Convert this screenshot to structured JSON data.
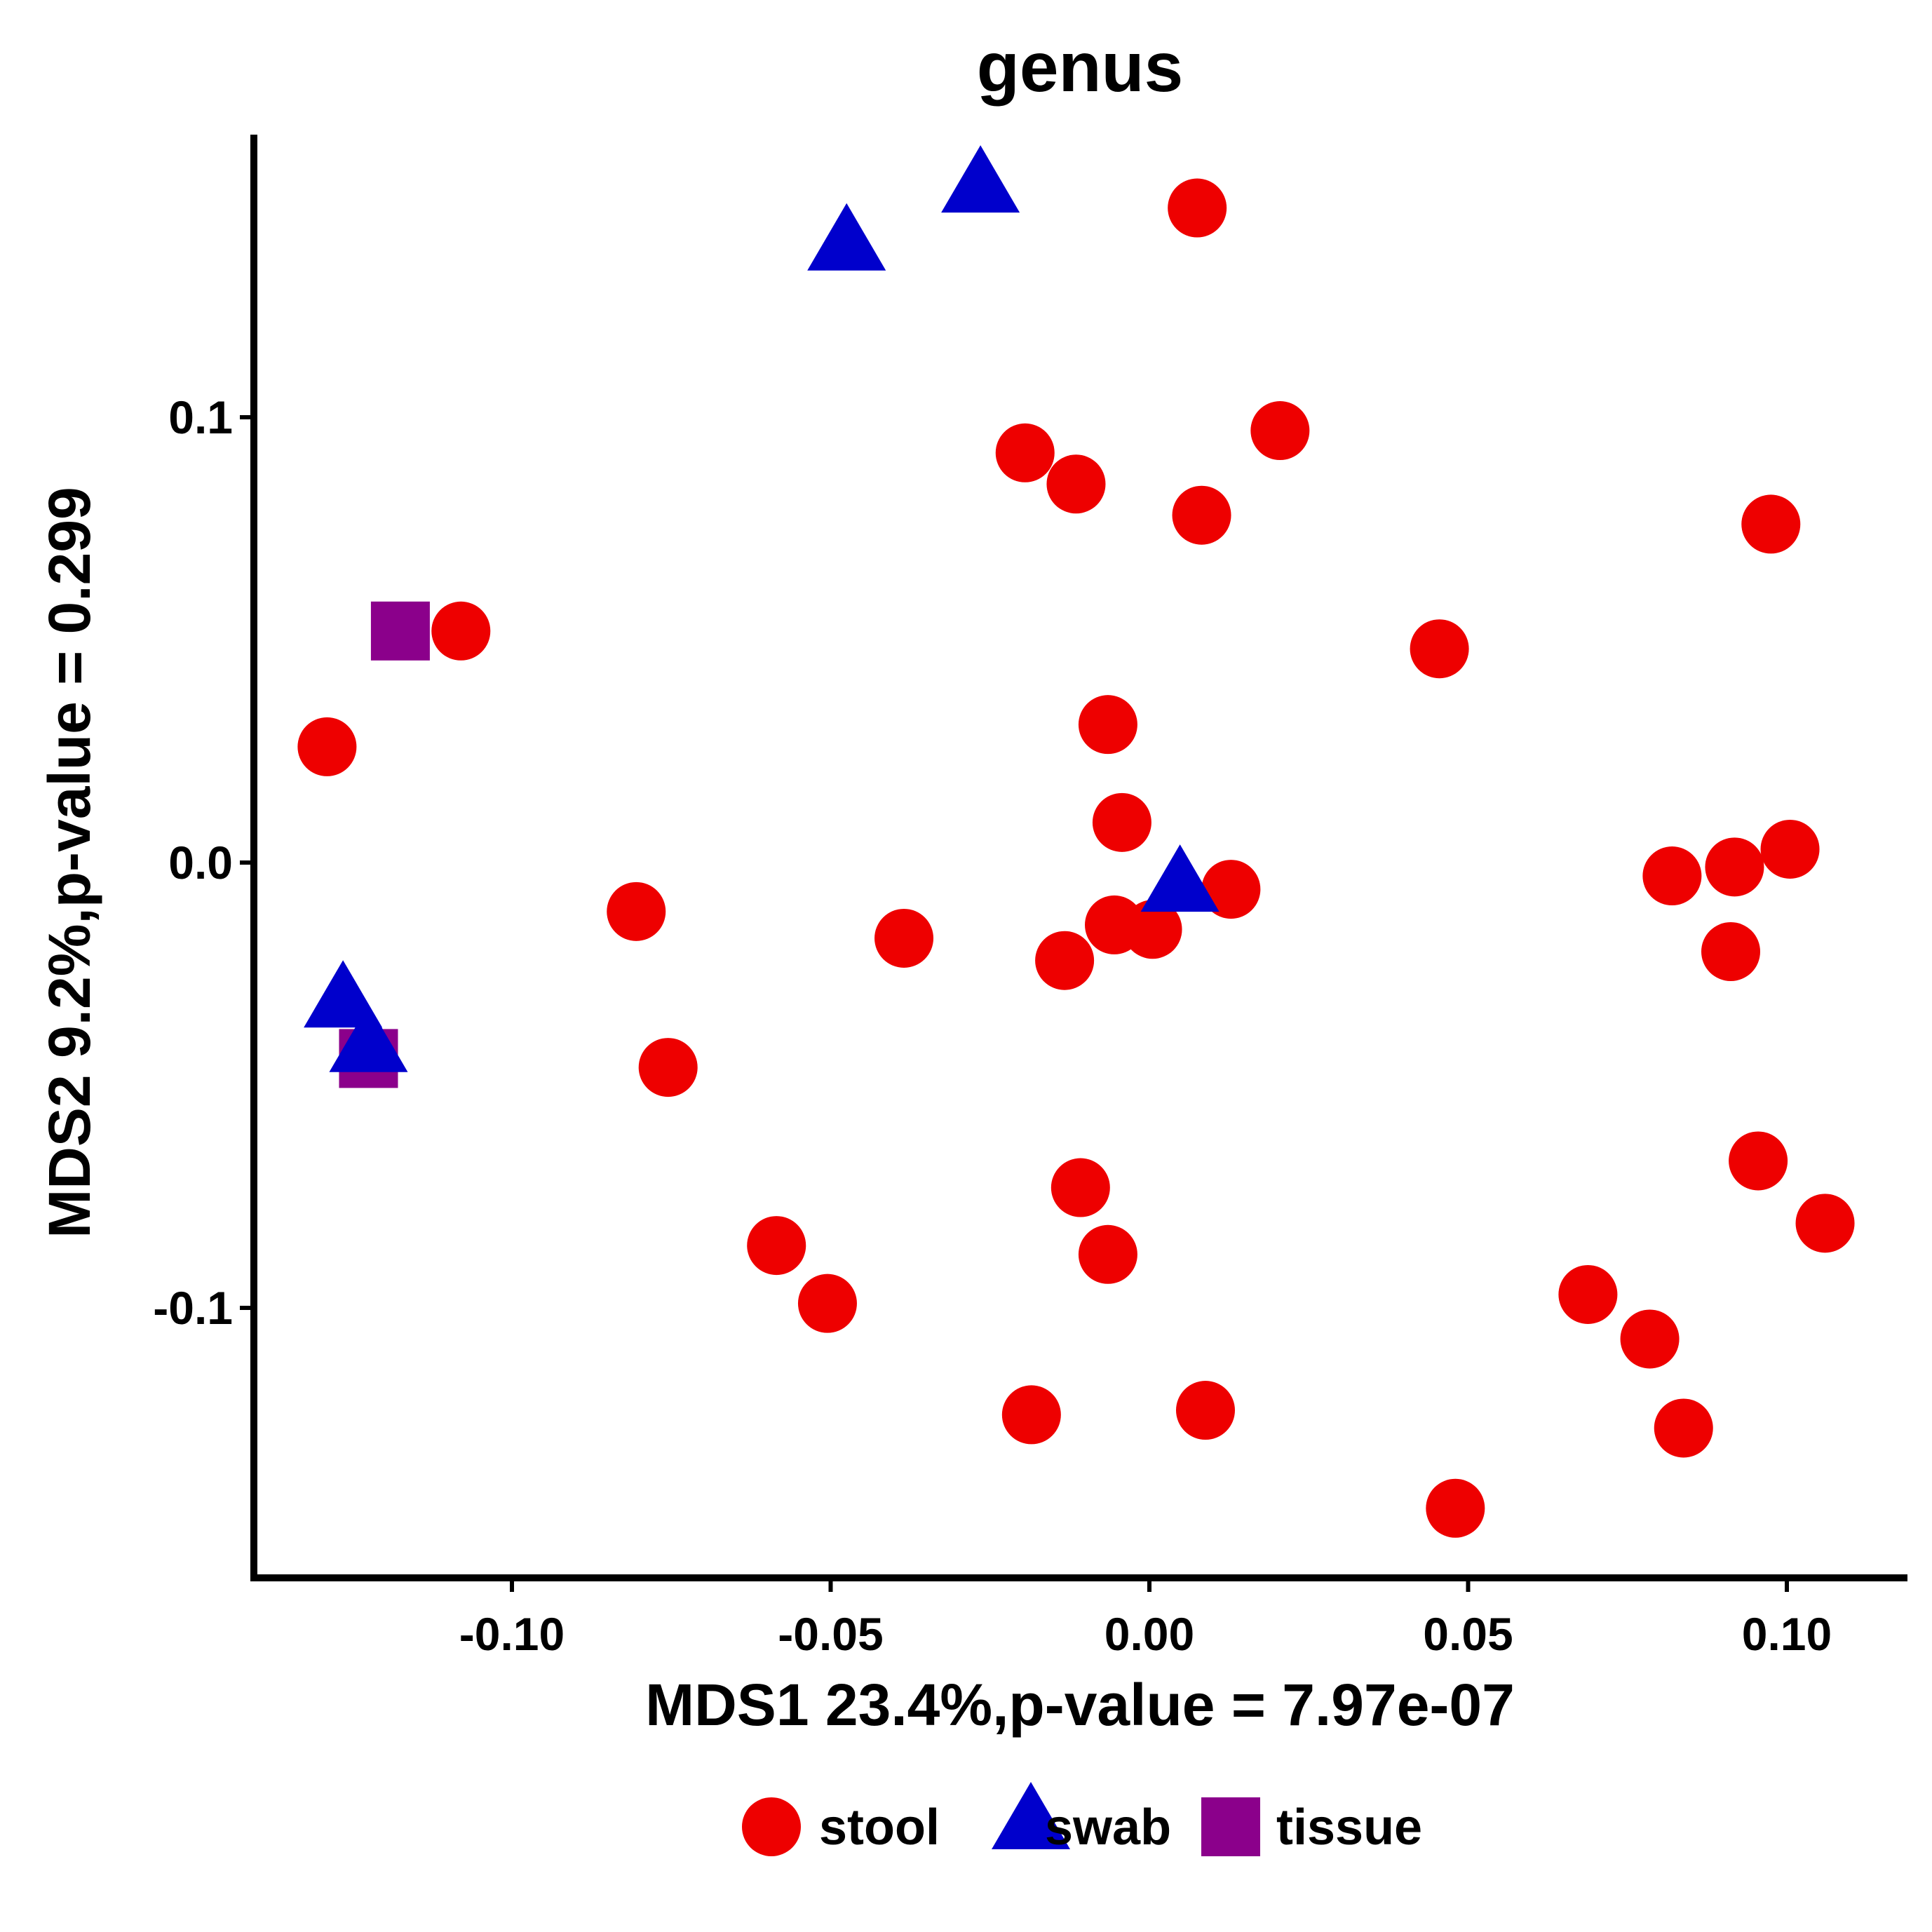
{
  "chart_data": {
    "type": "scatter",
    "title": "genus",
    "xlabel": "MDS1 23.4%,p-value = 7.97e-07",
    "ylabel": "MDS2 9.2%,p-value = 0.299",
    "xlim": [
      -0.14,
      0.117
    ],
    "ylim": [
      -0.16,
      0.163
    ],
    "xticks": [
      -0.1,
      -0.05,
      0.0,
      0.05,
      0.1
    ],
    "xtick_labels": [
      "-0.10",
      "-0.05",
      "0.00",
      "0.05",
      "0.10"
    ],
    "yticks": [
      -0.1,
      0.0,
      0.1
    ],
    "ytick_labels": [
      "-0.1",
      "0.0",
      "0.1"
    ],
    "grid": false,
    "legend_position": "bottom",
    "legend": [
      {
        "name": "stool",
        "shape": "circle",
        "color": "#EE0000"
      },
      {
        "name": "swab",
        "shape": "triangle",
        "color": "#0000CC"
      },
      {
        "name": "tissue",
        "shape": "square",
        "color": "#8B008B"
      }
    ],
    "series": [
      {
        "name": "stool",
        "shape": "circle",
        "color": "#EE0000",
        "points": [
          [
            0.0075,
            0.147
          ],
          [
            0.0205,
            0.097
          ],
          [
            -0.0195,
            0.092
          ],
          [
            -0.0115,
            0.085
          ],
          [
            0.0082,
            0.078
          ],
          [
            0.0975,
            0.076
          ],
          [
            -0.108,
            0.052
          ],
          [
            0.0455,
            0.048
          ],
          [
            -0.129,
            0.026
          ],
          [
            -0.0065,
            0.031
          ],
          [
            -0.0043,
            0.009
          ],
          [
            0.1005,
            0.003
          ],
          [
            0.0918,
            -0.001
          ],
          [
            0.082,
            -0.003
          ],
          [
            0.0128,
            -0.006
          ],
          [
            -0.0805,
            -0.011
          ],
          [
            -0.0385,
            -0.017
          ],
          [
            -0.0055,
            -0.014
          ],
          [
            0.0005,
            -0.015
          ],
          [
            -0.0133,
            -0.022
          ],
          [
            0.0912,
            -0.02
          ],
          [
            -0.0755,
            -0.046
          ],
          [
            0.0955,
            -0.067
          ],
          [
            -0.0108,
            -0.073
          ],
          [
            0.106,
            -0.081
          ],
          [
            -0.0585,
            -0.086
          ],
          [
            -0.0065,
            -0.088
          ],
          [
            -0.0505,
            -0.099
          ],
          [
            0.0688,
            -0.097
          ],
          [
            0.0785,
            -0.107
          ],
          [
            -0.0185,
            -0.124
          ],
          [
            0.0088,
            -0.123
          ],
          [
            0.0838,
            -0.127
          ],
          [
            0.048,
            -0.145
          ]
        ]
      },
      {
        "name": "swab",
        "shape": "triangle",
        "color": "#0000CC",
        "points": [
          [
            -0.0265,
            0.151
          ],
          [
            -0.0475,
            0.138
          ],
          [
            0.0048,
            -0.006
          ],
          [
            -0.1265,
            -0.032
          ],
          [
            -0.1225,
            -0.042
          ]
        ]
      },
      {
        "name": "tissue",
        "shape": "square",
        "color": "#8B008B",
        "points": [
          [
            -0.1175,
            0.052
          ],
          [
            -0.1225,
            -0.044
          ]
        ]
      }
    ]
  }
}
